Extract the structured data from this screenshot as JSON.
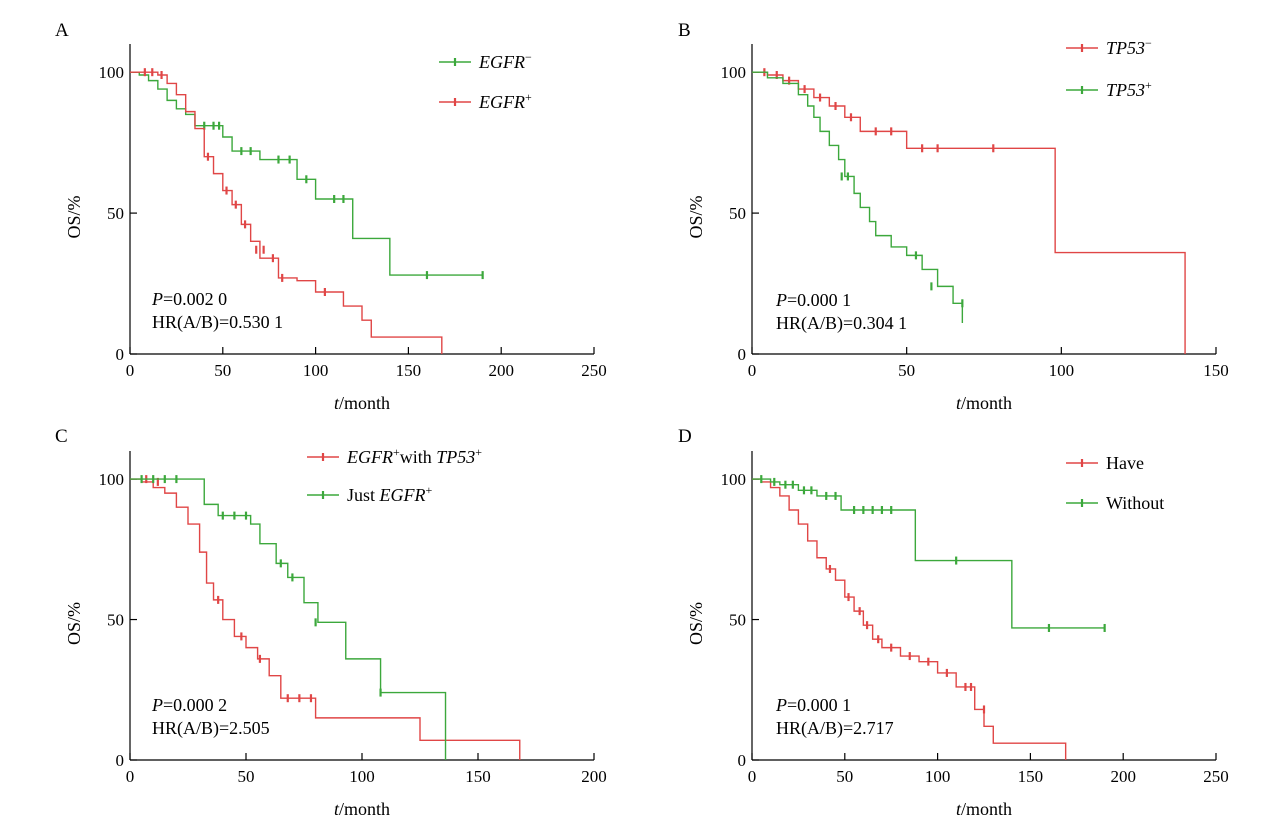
{
  "colors": {
    "red": "#e04646",
    "green": "#3ca83c"
  },
  "chart_data": [
    {
      "type": "line",
      "panel": "A",
      "xlabel_italic": "t",
      "xlabel_rest": "/month",
      "ylabel": "OS/%",
      "xlim": [
        0,
        250
      ],
      "ylim": [
        0,
        110
      ],
      "xticks": [
        0,
        50,
        100,
        150,
        200,
        250
      ],
      "xtick_labels": [
        "0",
        "50",
        "100",
        "150",
        "200",
        "250"
      ],
      "yticks": [
        0,
        50,
        100
      ],
      "ytick_labels": [
        "0",
        "50",
        "100"
      ],
      "stats": [
        {
          "italic": "P",
          "rest": "=0.002 0"
        },
        {
          "italic": "",
          "rest": "HR(A/B)=0.530 1"
        }
      ],
      "series": [
        {
          "legend": {
            "italic": "EGFR",
            "sup": "−",
            "rest": ""
          },
          "color": "green",
          "x": [
            0,
            5,
            10,
            15,
            20,
            25,
            30,
            35,
            50,
            55,
            70,
            85,
            90,
            100,
            110,
            120,
            140,
            190
          ],
          "y": [
            100,
            99,
            97,
            94,
            90,
            87,
            85,
            81,
            77,
            72,
            69,
            69,
            62,
            55,
            55,
            41,
            28,
            28
          ],
          "censored_x": [
            40,
            45,
            48,
            60,
            65,
            80,
            86,
            95,
            110,
            115,
            160,
            190
          ],
          "censored_y": [
            81,
            81,
            81,
            72,
            72,
            69,
            69,
            62,
            55,
            55,
            28,
            28
          ]
        },
        {
          "legend": {
            "italic": "EGFR",
            "sup": "+",
            "rest": ""
          },
          "color": "red",
          "x": [
            0,
            5,
            15,
            20,
            25,
            30,
            35,
            40,
            45,
            50,
            55,
            60,
            65,
            70,
            80,
            90,
            100,
            115,
            125,
            130,
            150,
            168
          ],
          "y": [
            100,
            100,
            99,
            96,
            92,
            86,
            80,
            70,
            64,
            58,
            53,
            46,
            40,
            34,
            27,
            26,
            22,
            17,
            12,
            6,
            6,
            0
          ],
          "censored_x": [
            8,
            12,
            17,
            42,
            52,
            57,
            62,
            68,
            72,
            77,
            82,
            105
          ],
          "censored_y": [
            100,
            100,
            99,
            70,
            58,
            53,
            46,
            37,
            37,
            34,
            27,
            22
          ]
        }
      ]
    },
    {
      "type": "line",
      "panel": "B",
      "xlabel_italic": "t",
      "xlabel_rest": "/month",
      "ylabel": "OS/%",
      "xlim": [
        0,
        150
      ],
      "ylim": [
        0,
        110
      ],
      "xticks": [
        0,
        50,
        100,
        150
      ],
      "xtick_labels": [
        "0",
        "50",
        "100",
        "150"
      ],
      "yticks": [
        0,
        50,
        100
      ],
      "ytick_labels": [
        "0",
        "50",
        "100"
      ],
      "stats": [
        {
          "italic": "P",
          "rest": "=0.000 1"
        },
        {
          "italic": "",
          "rest": "HR(A/B)=0.304 1"
        }
      ],
      "series": [
        {
          "legend": {
            "italic": "TP53",
            "sup": "−",
            "rest": ""
          },
          "color": "red",
          "x": [
            0,
            5,
            10,
            15,
            20,
            25,
            30,
            35,
            50,
            98,
            140
          ],
          "y": [
            100,
            99,
            97,
            94,
            91,
            88,
            84,
            79,
            73,
            36,
            0
          ],
          "censored_x": [
            4,
            8,
            12,
            17,
            22,
            27,
            32,
            40,
            45,
            55,
            60,
            78
          ],
          "censored_y": [
            100,
            99,
            97,
            94,
            91,
            88,
            84,
            79,
            79,
            73,
            73,
            73
          ]
        },
        {
          "legend": {
            "italic": "TP53",
            "sup": "+",
            "rest": ""
          },
          "color": "green",
          "x": [
            0,
            5,
            10,
            15,
            18,
            20,
            22,
            25,
            28,
            30,
            33,
            35,
            38,
            40,
            45,
            50,
            55,
            60,
            65,
            68
          ],
          "y": [
            100,
            98,
            96,
            92,
            88,
            84,
            79,
            74,
            69,
            63,
            57,
            52,
            47,
            42,
            38,
            35,
            30,
            24,
            18,
            11
          ],
          "censored_x": [
            29,
            31,
            53,
            58,
            68
          ],
          "censored_y": [
            63,
            63,
            35,
            24,
            18
          ]
        }
      ]
    },
    {
      "type": "line",
      "panel": "C",
      "xlabel_italic": "t",
      "xlabel_rest": "/month",
      "ylabel": "OS/%",
      "xlim": [
        0,
        200
      ],
      "ylim": [
        0,
        110
      ],
      "xticks": [
        0,
        50,
        100,
        150,
        200
      ],
      "xtick_labels": [
        "0",
        "50",
        "100",
        "150",
        "200"
      ],
      "yticks": [
        0,
        50,
        100
      ],
      "ytick_labels": [
        "0",
        "50",
        "100"
      ],
      "stats": [
        {
          "italic": "P",
          "rest": "=0.000 2"
        },
        {
          "italic": "",
          "rest": "HR(A/B)=2.505"
        }
      ],
      "series": [
        {
          "legend": {
            "italic": "EGFR",
            "sup": "+",
            "rest": "with ",
            "italic2": "TP53",
            "sup2": "+"
          },
          "color": "red",
          "x": [
            0,
            5,
            10,
            15,
            20,
            25,
            30,
            33,
            36,
            40,
            45,
            50,
            55,
            60,
            65,
            80,
            125,
            168
          ],
          "y": [
            100,
            99,
            97,
            95,
            90,
            84,
            74,
            63,
            57,
            50,
            44,
            40,
            36,
            30,
            22,
            15,
            7,
            0
          ],
          "censored_x": [
            7,
            12,
            38,
            48,
            56,
            68,
            73,
            78
          ],
          "censored_y": [
            100,
            99,
            57,
            44,
            36,
            22,
            22,
            22
          ]
        },
        {
          "legend": {
            "italic": "",
            "sup": "",
            "rest": "Just ",
            "italic2": "EGFR",
            "sup2": "+"
          },
          "color": "green",
          "x": [
            0,
            29,
            32,
            38,
            52,
            56,
            63,
            68,
            75,
            81,
            93,
            108,
            136
          ],
          "y": [
            100,
            100,
            91,
            87,
            84,
            77,
            70,
            65,
            56,
            49,
            36,
            24,
            0
          ],
          "censored_x": [
            5,
            10,
            15,
            20,
            40,
            45,
            50,
            65,
            70,
            80,
            108
          ],
          "censored_y": [
            100,
            100,
            100,
            100,
            87,
            87,
            87,
            70,
            65,
            49,
            24
          ]
        }
      ]
    },
    {
      "type": "line",
      "panel": "D",
      "xlabel_italic": "t",
      "xlabel_rest": "/month",
      "ylabel": "OS/%",
      "xlim": [
        0,
        250
      ],
      "ylim": [
        0,
        110
      ],
      "xticks": [
        0,
        50,
        100,
        150,
        200,
        250
      ],
      "xtick_labels": [
        "0",
        "50",
        "100",
        "150",
        "200",
        "250"
      ],
      "yticks": [
        0,
        50,
        100
      ],
      "ytick_labels": [
        "0",
        "50",
        "100"
      ],
      "stats": [
        {
          "italic": "P",
          "rest": "=0.000 1"
        },
        {
          "italic": "",
          "rest": "HR(A/B)=2.717"
        }
      ],
      "series": [
        {
          "legend": {
            "italic": "",
            "sup": "",
            "rest": "Have"
          },
          "color": "red",
          "x": [
            0,
            5,
            10,
            15,
            20,
            25,
            30,
            35,
            40,
            45,
            50,
            55,
            60,
            65,
            70,
            80,
            90,
            100,
            110,
            120,
            125,
            130,
            140,
            150,
            169
          ],
          "y": [
            100,
            99,
            97,
            94,
            89,
            84,
            78,
            72,
            68,
            64,
            58,
            53,
            48,
            43,
            40,
            37,
            35,
            31,
            26,
            18,
            12,
            6,
            6,
            6,
            0
          ],
          "censored_x": [
            42,
            52,
            58,
            62,
            68,
            75,
            85,
            95,
            105,
            115,
            118,
            125
          ],
          "censored_y": [
            68,
            58,
            53,
            48,
            43,
            40,
            37,
            35,
            31,
            26,
            26,
            18
          ]
        },
        {
          "legend": {
            "italic": "",
            "sup": "",
            "rest": "Without"
          },
          "color": "green",
          "x": [
            0,
            10,
            15,
            25,
            35,
            48,
            88,
            140,
            190
          ],
          "y": [
            100,
            99,
            98,
            96,
            94,
            89,
            71,
            47,
            47
          ],
          "censored_x": [
            5,
            12,
            18,
            22,
            28,
            32,
            40,
            45,
            55,
            60,
            65,
            70,
            75,
            110,
            160,
            190
          ],
          "censored_y": [
            100,
            99,
            98,
            98,
            96,
            96,
            94,
            94,
            89,
            89,
            89,
            89,
            89,
            71,
            47,
            47
          ]
        }
      ]
    }
  ]
}
